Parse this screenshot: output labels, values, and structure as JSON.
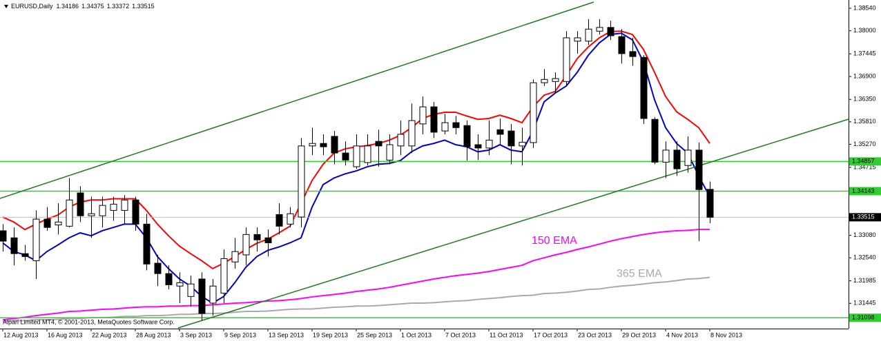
{
  "chart_data": {
    "type": "candlestick",
    "title": "EURUSD,Daily",
    "copyright": "Alpari Limited MT4, © 2001-2013, MetaQuotes Software Corp.",
    "categories": [
      "12 Aug 2013",
      null,
      null,
      null,
      "16 Aug 2013",
      null,
      null,
      null,
      "22 Aug 2013",
      null,
      null,
      null,
      "28 Aug 2013",
      null,
      null,
      null,
      "3 Sep 2013",
      null,
      null,
      null,
      "9 Sep 2013",
      null,
      null,
      null,
      "13 Sep 2013",
      null,
      null,
      null,
      "19 Sep 2013",
      null,
      null,
      null,
      "25 Sep 2013",
      null,
      null,
      null,
      "1 Oct 2013",
      null,
      null,
      null,
      "7 Oct 2013",
      null,
      null,
      null,
      "11 Oct 2013",
      null,
      null,
      null,
      "17 Oct 2013",
      null,
      null,
      null,
      "23 Oct 2013",
      null,
      null,
      null,
      "29 Oct 2013",
      null,
      null,
      null,
      "4 Nov 2013",
      null,
      null,
      null,
      "8 Nov 2013"
    ],
    "open": [
      1.3319,
      1.3302,
      1.3264,
      1.3247,
      1.3347,
      1.3333,
      1.333,
      1.341,
      1.3355,
      1.3355,
      1.3368,
      1.3368,
      1.3393,
      1.3335,
      1.3241,
      1.3216,
      1.3186,
      1.3161,
      1.3203,
      1.3145,
      1.3169,
      1.3244,
      1.3261,
      1.331,
      1.3302,
      1.3358,
      1.3335,
      1.3352,
      1.3523,
      1.3529,
      1.3546,
      1.3506,
      1.3473,
      1.3483,
      1.3534,
      1.3489,
      1.3523,
      1.3523,
      1.3576,
      1.3617,
      1.3559,
      1.3579,
      1.3572,
      1.3526,
      1.3518,
      1.3562,
      1.3559,
      1.3523,
      1.3531,
      1.3675,
      1.3678,
      1.3678,
      1.3775,
      1.3775,
      1.3799,
      1.3808,
      1.3786,
      1.375,
      1.3736,
      1.3587,
      1.3484,
      1.3513,
      1.3476,
      1.3513,
      1.34186
    ],
    "high": [
      1.3335,
      1.3327,
      1.3285,
      1.3368,
      1.3376,
      1.3385,
      1.3446,
      1.3426,
      1.3401,
      1.3401,
      1.3401,
      1.3405,
      1.3401,
      1.336,
      1.3261,
      1.3236,
      1.3219,
      1.3211,
      1.3219,
      1.3203,
      1.3274,
      1.3302,
      1.3327,
      1.3327,
      1.3322,
      1.3385,
      1.3376,
      1.3542,
      1.3567,
      1.3551,
      1.3559,
      1.3534,
      1.3551,
      1.3551,
      1.3562,
      1.3551,
      1.3584,
      1.3625,
      1.3642,
      1.3629,
      1.36,
      1.3595,
      1.3584,
      1.3551,
      1.3584,
      1.3589,
      1.3576,
      1.3567,
      1.3683,
      1.3708,
      1.37,
      1.3799,
      1.3799,
      1.3828,
      1.3828,
      1.3824,
      1.3804,
      1.3783,
      1.3741,
      1.3592,
      1.3534,
      1.3534,
      1.3546,
      1.3531,
      1.34375
    ],
    "low": [
      1.3269,
      1.3236,
      1.3247,
      1.3203,
      1.3319,
      1.331,
      1.3327,
      1.334,
      1.3302,
      1.3327,
      1.3343,
      1.3335,
      1.3319,
      1.3224,
      1.3186,
      1.3178,
      1.3145,
      1.3136,
      1.3103,
      1.3115,
      1.3145,
      1.3228,
      1.3236,
      1.3269,
      1.3257,
      1.331,
      1.3327,
      1.3327,
      1.3501,
      1.3501,
      1.3479,
      1.3476,
      1.3468,
      1.3476,
      1.3473,
      1.3479,
      1.3501,
      1.3506,
      1.3551,
      1.3542,
      1.3551,
      1.3551,
      1.3488,
      1.3489,
      1.3501,
      1.3526,
      1.3479,
      1.3476,
      1.3518,
      1.3667,
      1.365,
      1.3667,
      1.3745,
      1.3766,
      1.3791,
      1.3778,
      1.3721,
      1.3716,
      1.3576,
      1.3479,
      1.3446,
      1.3451,
      1.3459,
      1.3294,
      1.33372
    ],
    "close": [
      1.3294,
      1.3264,
      1.3257,
      1.3347,
      1.3327,
      1.334,
      1.3393,
      1.3355,
      1.336,
      1.338,
      1.3383,
      1.3393,
      1.3335,
      1.3239,
      1.3216,
      1.3189,
      1.3194,
      1.3191,
      1.312,
      1.3186,
      1.3252,
      1.3269,
      1.331,
      1.3297,
      1.329,
      1.333,
      1.336,
      1.3523,
      1.3529,
      1.3521,
      1.3506,
      1.3489,
      1.3523,
      1.3523,
      1.3523,
      1.3526,
      1.3551,
      1.3584,
      1.3617,
      1.3556,
      1.3579,
      1.3567,
      1.3521,
      1.3518,
      1.3537,
      1.3551,
      1.3523,
      1.3532,
      1.3675,
      1.3683,
      1.3685,
      1.3783,
      1.3783,
      1.3804,
      1.3808,
      1.3788,
      1.3745,
      1.3738,
      1.3589,
      1.3484,
      1.3513,
      1.3468,
      1.3513,
      1.3418,
      1.33515
    ],
    "up_color": "#ffffff",
    "down_color": "#000000",
    "overlays": [
      {
        "color": "#ff0000",
        "values": [
          1.3352,
          1.334,
          1.3322,
          1.3335,
          1.3347,
          1.3357,
          1.3376,
          1.3388,
          1.3393,
          1.3393,
          1.3396,
          1.3396,
          1.3396,
          1.3368,
          1.3335,
          1.3307,
          1.3282,
          1.3264,
          1.3247,
          1.3228,
          1.3241,
          1.3257,
          1.3274,
          1.3289,
          1.3299,
          1.3314,
          1.333,
          1.3385,
          1.344,
          1.3479,
          1.3506,
          1.3516,
          1.3521,
          1.3524,
          1.3529,
          1.3537,
          1.3549,
          1.3567,
          1.3589,
          1.3599,
          1.3604,
          1.3604,
          1.3595,
          1.3587,
          1.3589,
          1.3597,
          1.3589,
          1.3579,
          1.3617,
          1.3645,
          1.3654,
          1.3692,
          1.3733,
          1.3761,
          1.3783,
          1.3798,
          1.3799,
          1.3791,
          1.3755,
          1.37,
          1.3642,
          1.3605,
          1.3587,
          1.3567,
          1.3529
        ]
      },
      {
        "color": "#0000cd",
        "values": [
          1.329,
          1.3269,
          1.3261,
          1.3247,
          1.3269,
          1.3285,
          1.3302,
          1.3314,
          1.3307,
          1.3319,
          1.3327,
          1.3335,
          1.3335,
          1.3302,
          1.3257,
          1.3228,
          1.3203,
          1.3186,
          1.3161,
          1.3145,
          1.3161,
          1.3194,
          1.3231,
          1.3257,
          1.3272,
          1.328,
          1.329,
          1.3302,
          1.3376,
          1.343,
          1.3446,
          1.3456,
          1.3463,
          1.3473,
          1.3479,
          1.3481,
          1.3488,
          1.3509,
          1.3523,
          1.3529,
          1.3537,
          1.3526,
          1.3521,
          1.3509,
          1.3513,
          1.3526,
          1.3513,
          1.3509,
          1.3559,
          1.3629,
          1.365,
          1.3667,
          1.37,
          1.3741,
          1.3771,
          1.3791,
          1.3794,
          1.3778,
          1.3725,
          1.3634,
          1.3567,
          1.3529,
          1.3506,
          1.3451,
          1.3401
        ]
      },
      {
        "name": "150 EMA",
        "color": "#ff00ff",
        "values": [
          1.3105,
          1.3108,
          1.3111,
          1.3115,
          1.3118,
          1.3121,
          1.3125,
          1.3126,
          1.3128,
          1.313,
          1.3131,
          1.3133,
          1.3135,
          1.3136,
          1.3136,
          1.3138,
          1.3138,
          1.3139,
          1.3139,
          1.3141,
          1.3143,
          1.3145,
          1.3146,
          1.3148,
          1.315,
          1.3151,
          1.3153,
          1.3156,
          1.316,
          1.3163,
          1.3166,
          1.3169,
          1.3173,
          1.3176,
          1.3179,
          1.3183,
          1.3188,
          1.3193,
          1.3198,
          1.3203,
          1.3207,
          1.3211,
          1.3214,
          1.3217,
          1.3221,
          1.3226,
          1.3231,
          1.3236,
          1.3247,
          1.3254,
          1.3261,
          1.3267,
          1.3274,
          1.328,
          1.3287,
          1.3294,
          1.33,
          1.3305,
          1.331,
          1.3314,
          1.3317,
          1.3319,
          1.332,
          1.3322,
          1.3322
        ]
      },
      {
        "name": "365 EMA",
        "color": "#a9a9a9",
        "values": [
          1.3101,
          1.3103,
          1.3103,
          1.3105,
          1.3105,
          1.3106,
          1.3108,
          1.3108,
          1.311,
          1.311,
          1.3111,
          1.3113,
          1.3113,
          1.3115,
          1.3115,
          1.3116,
          1.3118,
          1.3118,
          1.312,
          1.312,
          1.3121,
          1.3123,
          1.3125,
          1.3125,
          1.3126,
          1.3128,
          1.313,
          1.3131,
          1.3131,
          1.3133,
          1.3135,
          1.3136,
          1.3138,
          1.3138,
          1.3139,
          1.3141,
          1.3143,
          1.3145,
          1.3145,
          1.3146,
          1.3148,
          1.315,
          1.3151,
          1.3154,
          1.3156,
          1.3158,
          1.3161,
          1.3163,
          1.3164,
          1.3168,
          1.3169,
          1.3171,
          1.3174,
          1.3178,
          1.3179,
          1.3183,
          1.3186,
          1.3188,
          1.3191,
          1.3194,
          1.3196,
          1.3199,
          1.3203,
          1.3204,
          1.3207
        ]
      }
    ],
    "hlines": [
      {
        "value": 1.34857,
        "color": "#32cd32"
      },
      {
        "value": 1.34143,
        "color": "#32cd32"
      },
      {
        "value": 1.31098,
        "color": "#32cd32"
      }
    ],
    "ylim": [
      1.3087,
      1.3874
    ],
    "yticks": [
      {
        "value": 1.3854,
        "label": "1.38540"
      },
      {
        "value": 1.38,
        "label": "1.38000"
      },
      1.37445,
      {
        "value": 1.369,
        "label": "1.36900"
      },
      {
        "value": 1.3635,
        "label": "1.36350"
      },
      {
        "value": 1.3581,
        "label": "1.35810"
      },
      {
        "value": 1.3527,
        "label": "1.35270"
      },
      1.34715,
      {
        "value": 1.3308,
        "label": "1.33080"
      },
      {
        "value": 1.3254,
        "label": "1.32540"
      },
      1.31985,
      1.31445
    ]
  }
}
